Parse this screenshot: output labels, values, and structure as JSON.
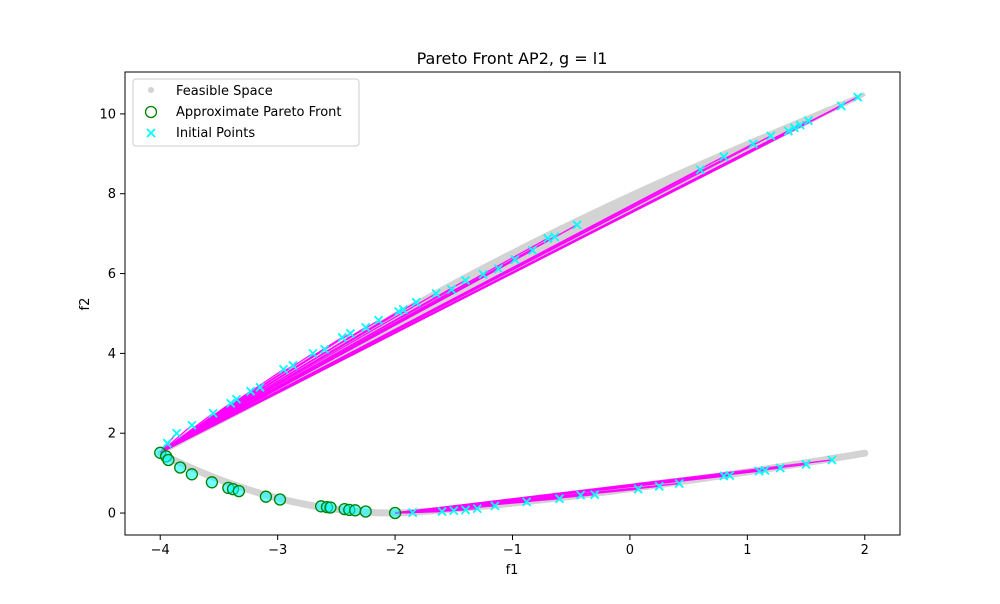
{
  "chart_data": {
    "type": "scatter",
    "title": "Pareto Front AP2, g = l1",
    "xlabel": "f1",
    "ylabel": "f2",
    "xlim": [
      -4.3,
      2.3
    ],
    "ylim": [
      -0.55,
      11.05
    ],
    "xticks": [
      -4,
      -3,
      -2,
      -1,
      0,
      1,
      2
    ],
    "yticks": [
      0,
      2,
      4,
      6,
      8,
      10
    ],
    "grid": false,
    "legend_position": "top-left",
    "colors": {
      "feasible": "#d3d3d3",
      "front": "#008000",
      "initial": "#00ffff",
      "paths": "#ff00ff"
    },
    "legend": [
      {
        "label": "Feasible Space",
        "marker": "dot"
      },
      {
        "label": "Approximate Pareto Front",
        "marker": "circle"
      },
      {
        "label": "Initial Points",
        "marker": "x"
      }
    ],
    "series": [
      {
        "name": "Feasible Space",
        "bands": [
          {
            "segment": "upper-left",
            "x0": -4.0,
            "x1": 2.0,
            "note_curve": "f2 = f1^2/...",
            "x_range": [
              -4.0,
              2.0
            ]
          },
          {
            "segment": "lower",
            "x_range": [
              -4.0,
              2.0
            ]
          }
        ]
      },
      {
        "name": "Approximate Pareto Front",
        "x": [
          -4.0,
          -3.95,
          -3.93,
          -3.83,
          -3.73,
          -3.56,
          -3.42,
          -3.38,
          -3.33,
          -3.1,
          -2.98,
          -2.63,
          -2.58,
          -2.55,
          -2.43,
          -2.39,
          -2.34,
          -2.25,
          -2.0
        ],
        "y": [
          1.51,
          1.42,
          1.33,
          1.14,
          0.97,
          0.77,
          0.63,
          0.6,
          0.55,
          0.41,
          0.34,
          0.17,
          0.15,
          0.14,
          0.1,
          0.08,
          0.07,
          0.04,
          0.0
        ]
      },
      {
        "name": "Initial Points",
        "x": [
          -3.94,
          -3.86,
          -3.73,
          -3.55,
          -3.4,
          -3.35,
          -3.23,
          -3.15,
          -2.95,
          -2.87,
          -2.7,
          -2.6,
          -2.45,
          -2.38,
          -2.25,
          -2.14,
          -1.97,
          -1.93,
          -1.82,
          -1.65,
          -1.52,
          -1.4,
          -1.25,
          -1.12,
          -0.98,
          -0.83,
          -0.7,
          -0.64,
          -0.45,
          -1.85,
          -1.6,
          -1.5,
          -1.4,
          -1.3,
          -1.15,
          -0.88,
          -0.6,
          -0.42,
          -0.3,
          0.07,
          0.25,
          0.42,
          0.8,
          0.85,
          1.1,
          1.15,
          1.28,
          1.5,
          1.72,
          0.6,
          0.8,
          1.05,
          1.2,
          1.35,
          1.4,
          1.45,
          1.52,
          1.8,
          1.94
        ],
        "y": [
          1.75,
          2.0,
          2.2,
          2.5,
          2.75,
          2.85,
          3.05,
          3.15,
          3.6,
          3.7,
          4.0,
          4.1,
          4.4,
          4.5,
          4.65,
          4.83,
          5.05,
          5.1,
          5.28,
          5.5,
          5.6,
          5.83,
          5.98,
          6.12,
          6.35,
          6.58,
          6.88,
          6.92,
          7.22,
          0.01,
          0.04,
          0.06,
          0.08,
          0.11,
          0.18,
          0.28,
          0.36,
          0.45,
          0.46,
          0.6,
          0.67,
          0.74,
          0.93,
          0.94,
          1.05,
          1.07,
          1.13,
          1.22,
          1.33,
          8.6,
          8.93,
          9.25,
          9.45,
          9.57,
          9.65,
          9.72,
          9.83,
          10.2,
          10.42
        ]
      }
    ]
  }
}
